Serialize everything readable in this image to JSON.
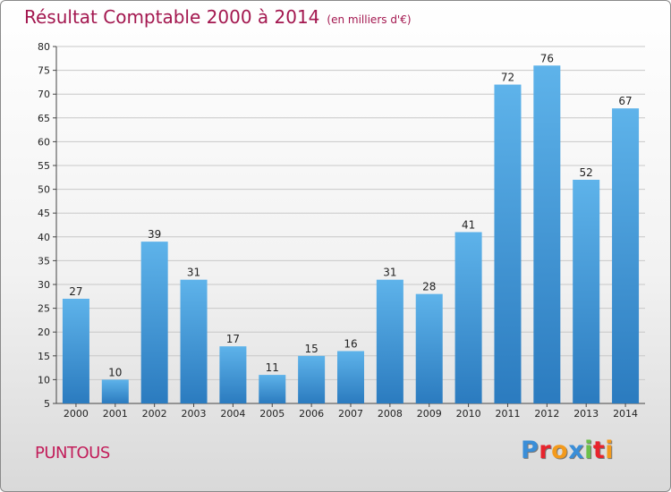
{
  "header": {
    "title": "Résultat Comptable 2000 à 2014",
    "subtitle": "(en milliers d'€)"
  },
  "footer": {
    "commune": "PUNTOUS",
    "logo_letters": [
      "P",
      "r",
      "o",
      "x",
      "i",
      "t",
      "i"
    ],
    "logo_colors": [
      "#3a8ed8",
      "#e8242d",
      "#f39a1c",
      "#3a8ed8",
      "#6cc04a",
      "#e8242d",
      "#f39a1c"
    ]
  },
  "colors": {
    "bar_top": "#5eb3ea",
    "bar_bottom": "#2b7bbf",
    "grid": "#c8c8c8"
  },
  "chart_data": {
    "type": "bar",
    "title": "Résultat Comptable 2000 à 2014",
    "subtitle": "(en milliers d'€)",
    "categories": [
      "2000",
      "2001",
      "2002",
      "2003",
      "2004",
      "2005",
      "2006",
      "2007",
      "2008",
      "2009",
      "2010",
      "2011",
      "2012",
      "2013",
      "2014"
    ],
    "values": [
      27,
      10,
      39,
      31,
      17,
      11,
      15,
      16,
      31,
      28,
      41,
      72,
      76,
      52,
      67
    ],
    "ylim": [
      5,
      80
    ],
    "yticks": [
      5,
      10,
      15,
      20,
      25,
      30,
      35,
      40,
      45,
      50,
      55,
      60,
      65,
      70,
      75,
      80
    ],
    "grid": true,
    "data_labels": true
  }
}
